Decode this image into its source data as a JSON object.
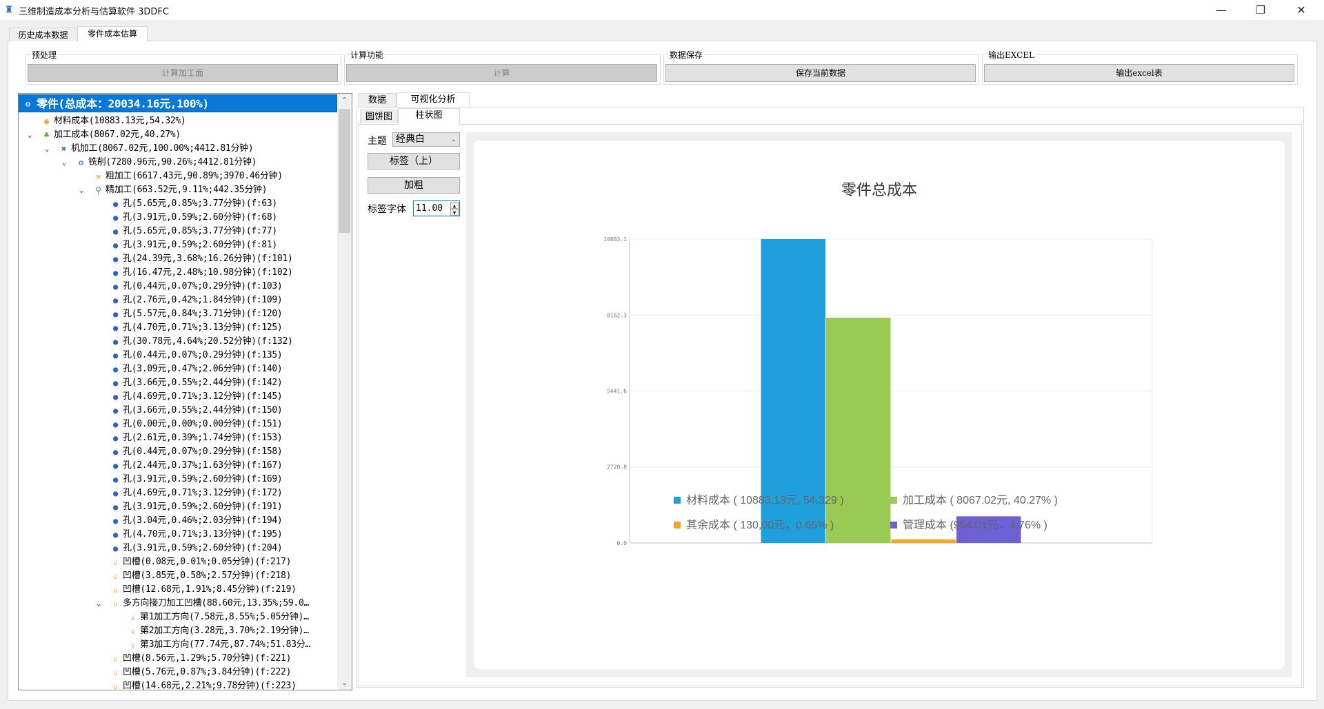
{
  "window": {
    "title": "三维制造成本分析与估算软件 3DDFC",
    "minimize": "—",
    "restore": "❐",
    "close": "✕"
  },
  "main_tabs": [
    {
      "label": "历史成本数据",
      "active": false
    },
    {
      "label": "零件成本估算",
      "active": true
    }
  ],
  "groups": {
    "preprocess": {
      "title": "预处理",
      "button": "计算加工面",
      "enabled": false
    },
    "compute": {
      "title": "计算功能",
      "button": "计算",
      "enabled": false
    },
    "save": {
      "title": "数据保存",
      "button": "保存当前数据",
      "enabled": true
    },
    "export": {
      "title": "输出EXCEL",
      "button": "输出excel表",
      "enabled": true
    }
  },
  "tree": {
    "rows": [
      {
        "level": 0,
        "icon": "gear",
        "label": "零件(总成本：20034.16元,100%)",
        "selected": true
      },
      {
        "level": 1,
        "icon": "coins",
        "label": "材料成本(10883.13元,54.32%)"
      },
      {
        "level": 1,
        "icon": "factory",
        "label": "加工成本(8067.02元,40.27%)",
        "expanded": true
      },
      {
        "level": 2,
        "icon": "tools",
        "label": "机加工(8067.02元,100.00%;4412.81分钟)",
        "expanded": true
      },
      {
        "level": 3,
        "icon": "gear",
        "label": "铣削(7280.96元,90.26%;4412.81分钟)",
        "expanded": true
      },
      {
        "level": 4,
        "icon": "hammer",
        "label": "粗加工(6617.43元,90.89%;3970.46分钟)"
      },
      {
        "level": 4,
        "icon": "drill",
        "label": "精加工(663.52元,9.11%;442.35分钟)",
        "expanded": true
      },
      {
        "level": 5,
        "icon": "hole",
        "label": "孔(5.65元,0.85%;3.77分钟)(f:63)"
      },
      {
        "level": 5,
        "icon": "hole",
        "label": "孔(3.91元,0.59%;2.60分钟)(f:68)"
      },
      {
        "level": 5,
        "icon": "hole",
        "label": "孔(5.65元,0.85%;3.77分钟)(f:77)"
      },
      {
        "level": 5,
        "icon": "hole",
        "label": "孔(3.91元,0.59%;2.60分钟)(f:81)"
      },
      {
        "level": 5,
        "icon": "hole",
        "label": "孔(24.39元,3.68%;16.26分钟)(f:101)"
      },
      {
        "level": 5,
        "icon": "hole",
        "label": "孔(16.47元,2.48%;10.98分钟)(f:102)"
      },
      {
        "level": 5,
        "icon": "hole",
        "label": "孔(0.44元,0.07%;0.29分钟)(f:103)"
      },
      {
        "level": 5,
        "icon": "hole",
        "label": "孔(2.76元,0.42%;1.84分钟)(f:109)"
      },
      {
        "level": 5,
        "icon": "hole",
        "label": "孔(5.57元,0.84%;3.71分钟)(f:120)"
      },
      {
        "level": 5,
        "icon": "hole",
        "label": "孔(4.70元,0.71%;3.13分钟)(f:125)"
      },
      {
        "level": 5,
        "icon": "hole",
        "label": "孔(30.78元,4.64%;20.52分钟)(f:132)"
      },
      {
        "level": 5,
        "icon": "hole",
        "label": "孔(0.44元,0.07%;0.29分钟)(f:135)"
      },
      {
        "level": 5,
        "icon": "hole",
        "label": "孔(3.09元,0.47%;2.06分钟)(f:140)"
      },
      {
        "level": 5,
        "icon": "hole",
        "label": "孔(3.66元,0.55%;2.44分钟)(f:142)"
      },
      {
        "level": 5,
        "icon": "hole",
        "label": "孔(4.69元,0.71%;3.12分钟)(f:145)"
      },
      {
        "level": 5,
        "icon": "hole",
        "label": "孔(3.66元,0.55%;2.44分钟)(f:150)"
      },
      {
        "level": 5,
        "icon": "hole",
        "label": "孔(0.00元,0.00%;0.00分钟)(f:151)"
      },
      {
        "level": 5,
        "icon": "hole",
        "label": "孔(2.61元,0.39%;1.74分钟)(f:153)"
      },
      {
        "level": 5,
        "icon": "hole",
        "label": "孔(0.44元,0.07%;0.29分钟)(f:158)"
      },
      {
        "level": 5,
        "icon": "hole",
        "label": "孔(2.44元,0.37%;1.63分钟)(f:167)"
      },
      {
        "level": 5,
        "icon": "hole",
        "label": "孔(3.91元,0.59%;2.60分钟)(f:169)"
      },
      {
        "level": 5,
        "icon": "hole",
        "label": "孔(4.69元,0.71%;3.12分钟)(f:172)"
      },
      {
        "level": 5,
        "icon": "hole",
        "label": "孔(3.91元,0.59%;2.60分钟)(f:191)"
      },
      {
        "level": 5,
        "icon": "hole",
        "label": "孔(3.04元,0.46%;2.03分钟)(f:194)"
      },
      {
        "level": 5,
        "icon": "hole",
        "label": "孔(4.70元,0.71%;3.13分钟)(f:195)"
      },
      {
        "level": 5,
        "icon": "hole",
        "label": "孔(3.91元,0.59%;2.60分钟)(f:204)"
      },
      {
        "level": 5,
        "icon": "groove",
        "label": "凹槽(0.08元,0.01%;0.05分钟)(f:217)"
      },
      {
        "level": 5,
        "icon": "groove",
        "label": "凹槽(3.85元,0.58%;2.57分钟)(f:218)"
      },
      {
        "level": 5,
        "icon": "groove",
        "label": "凹槽(12.68元,1.91%;8.45分钟)(f:219)"
      },
      {
        "level": 5,
        "icon": "groove",
        "label": "多方向接刀加工凹槽(88.60元,13.35%;59.0…",
        "expanded": true
      },
      {
        "level": 6,
        "icon": "groove",
        "label": "第1加工方向(7.58元,8.55%;5.05分钟)…"
      },
      {
        "level": 6,
        "icon": "groove",
        "label": "第2加工方向(3.28元,3.70%;2.19分钟)…"
      },
      {
        "level": 6,
        "icon": "groove",
        "label": "第3加工方向(77.74元,87.74%;51.83分…"
      },
      {
        "level": 5,
        "icon": "groove",
        "label": "凹槽(8.56元,1.29%;5.70分钟)(f:221)"
      },
      {
        "level": 5,
        "icon": "groove",
        "label": "凹槽(5.76元,0.87%;3.84分钟)(f:222)"
      },
      {
        "level": 5,
        "icon": "groove",
        "label": "凹槽(14.68元,2.21%;9.78分钟)(f:223)"
      }
    ]
  },
  "right_tabs": [
    {
      "label": "数据",
      "active": false
    },
    {
      "label": "可视化分析",
      "active": true
    }
  ],
  "chart_tabs": [
    {
      "label": "圆饼图",
      "active": false
    },
    {
      "label": "柱状图",
      "active": true
    }
  ],
  "controls": {
    "theme_label": "主题",
    "theme_value": "经典白",
    "label_pos_button": "标签（上）",
    "bold_button": "加粗",
    "font_label": "标签字体",
    "font_value": "11.00"
  },
  "chart_data": {
    "type": "bar",
    "title": "零件总成本",
    "categories": [
      ""
    ],
    "series": [
      {
        "name": "材料成本",
        "values": [
          10883.13
        ],
        "color": "#209fdd",
        "legend": "材料成本 ( 10883.13元, 54.329 )"
      },
      {
        "name": "加工成本",
        "values": [
          8067.02
        ],
        "color": "#9bca54",
        "legend": "加工成本 ( 8067.02元, 40.27% )"
      },
      {
        "name": "其余成本",
        "values": [
          130.0
        ],
        "color": "#f5a623",
        "legend": "其余成本 ( 130,00元，0.65% )"
      },
      {
        "name": "管理成本",
        "values": [
          954.01
        ],
        "color": "#6e60d5",
        "legend": "管理成本 (954.01元，4.76% )"
      }
    ],
    "yticks": [
      "0.0",
      "2720.8",
      "5441.6",
      "8162.3",
      "10883.1"
    ],
    "ylim": [
      0,
      10883.1
    ],
    "grid": true,
    "legend_position": "bottom"
  }
}
